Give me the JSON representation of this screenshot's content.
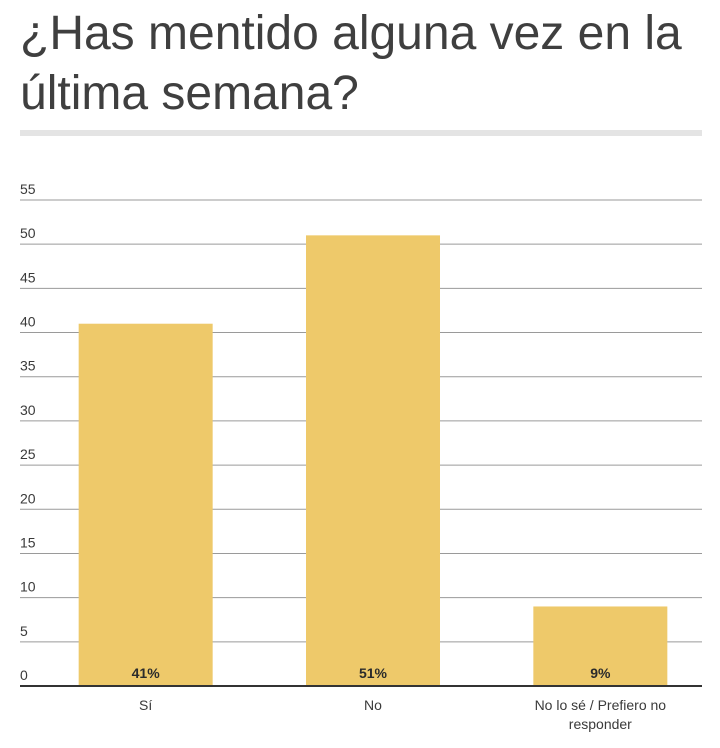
{
  "chart_data": {
    "type": "bar",
    "title": "¿Has mentido alguna vez en la última semana?",
    "categories": [
      "Sí",
      "No",
      "No lo sé / Prefiero no responder"
    ],
    "category_lines": [
      [
        "Sí"
      ],
      [
        "No"
      ],
      [
        "No lo sé / Prefiero no",
        "responder"
      ]
    ],
    "values": [
      41,
      51,
      9
    ],
    "data_labels": [
      "41%",
      "51%",
      "9%"
    ],
    "ylim": [
      0,
      55
    ],
    "yticks": [
      0,
      5,
      10,
      15,
      20,
      25,
      30,
      35,
      40,
      45,
      50,
      55
    ],
    "grid": true,
    "legend": "none",
    "bar_color": "#eec96a",
    "grid_color": "#9a9a9a",
    "baseline_color": "#333333"
  }
}
